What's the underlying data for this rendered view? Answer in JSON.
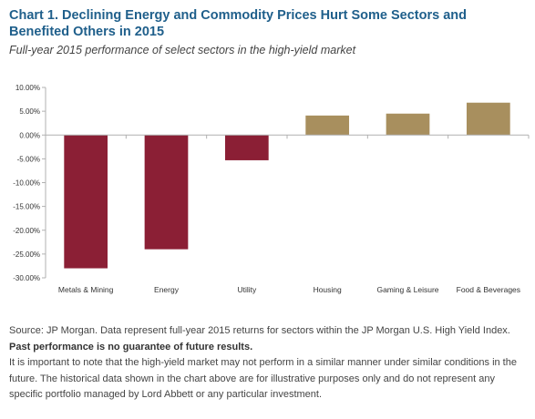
{
  "header": {
    "title": "Chart 1. Declining Energy and Commodity Prices Hurt Some Sectors and Benefited Others in 2015",
    "subtitle": "Full-year 2015 performance of select sectors in the high-yield market"
  },
  "chart_data": {
    "type": "bar",
    "categories": [
      "Metals & Mining",
      "Energy",
      "Utility",
      "Housing",
      "Gaming & Leisure",
      "Food & Beverages"
    ],
    "values": [
      -28.0,
      -24.0,
      -5.3,
      4.1,
      4.5,
      6.8
    ],
    "ylim": [
      -30,
      10
    ],
    "yticks": [
      10,
      5,
      0,
      -5,
      -10,
      -15,
      -20,
      -25,
      -30
    ],
    "ytick_labels": [
      "10.00%",
      "5.00%",
      "0.00%",
      "-5.00%",
      "-10.00%",
      "-15.00%",
      "-20.00%",
      "-25.00%",
      "-30.00%"
    ],
    "xlabel": "",
    "ylabel": "",
    "grid": false,
    "colors": {
      "negative": "#8b1f35",
      "positive": "#a88f5e",
      "axis": "#b0b0b0"
    }
  },
  "footer": {
    "source": "Source:  JP Morgan. Data represent full-year 2015 returns for sectors within the JP Morgan U.S. High Yield Index.",
    "warning": "Past performance is no guarantee of future results.",
    "disclaimer": "It is important to note that the high-yield market may not perform in a similar manner under similar conditions in the future. The historical data shown in the chart above are for illustrative purposes only and do not represent any specific portfolio managed by Lord Abbett or any particular investment."
  }
}
